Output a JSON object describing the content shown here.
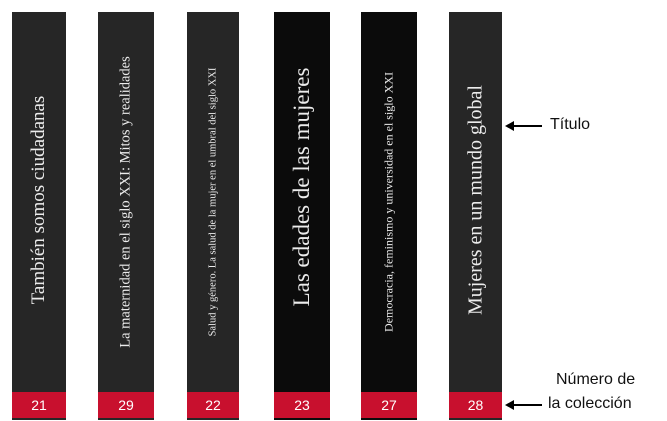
{
  "spines": [
    {
      "title": "También somos ciudadanas",
      "number": "21"
    },
    {
      "title": "La maternidad en el siglo XXI: Mitos y realidades",
      "number": "29"
    },
    {
      "title": "Salud y género. La salud de la mujer en el umbral del siglo XXI",
      "number": "22"
    },
    {
      "title": "Las edades de las mujeres",
      "number": "23"
    },
    {
      "title": "Democracia, feminismo y universidad en el siglo XXI",
      "number": "27"
    },
    {
      "title": "Mujeres en un mundo global",
      "number": "28"
    }
  ],
  "labels": {
    "title": "Título",
    "number_line1": "Número de",
    "number_line2": "la colección"
  }
}
